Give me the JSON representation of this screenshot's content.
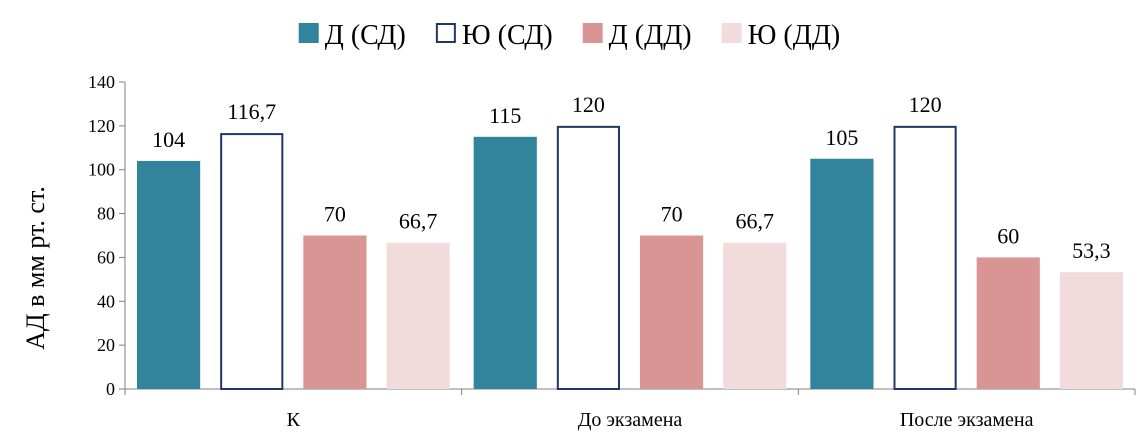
{
  "chart_data": {
    "type": "bar",
    "title": "",
    "xlabel": "",
    "ylabel": "АД в мм рт. ст.",
    "ylim": [
      0,
      140
    ],
    "yticks": [
      0,
      20,
      40,
      60,
      80,
      100,
      120,
      140
    ],
    "categories": [
      "К",
      "До экзамена",
      "После экзамена"
    ],
    "legend_position": "top",
    "grid": false,
    "series": [
      {
        "name": "Д (СД)",
        "values": [
          104,
          115,
          105
        ],
        "labels": [
          "104",
          "115",
          "105"
        ],
        "fill": "#31849b",
        "stroke": "#31849b"
      },
      {
        "name": "Ю (СД)",
        "values": [
          116.7,
          120,
          120
        ],
        "labels": [
          "116,7",
          "120",
          "120"
        ],
        "fill": "#ffffff",
        "stroke": "#1f3864"
      },
      {
        "name": "Д (ДД)",
        "values": [
          70,
          70,
          60
        ],
        "labels": [
          "70",
          "70",
          "60"
        ],
        "fill": "#d99594",
        "stroke": "#d99594"
      },
      {
        "name": "Ю (ДД)",
        "values": [
          66.7,
          66.7,
          53.3
        ],
        "labels": [
          "66,7",
          "66,7",
          "53,3"
        ],
        "fill": "#f2dcdb",
        "stroke": "#f2dcdb"
      }
    ]
  }
}
